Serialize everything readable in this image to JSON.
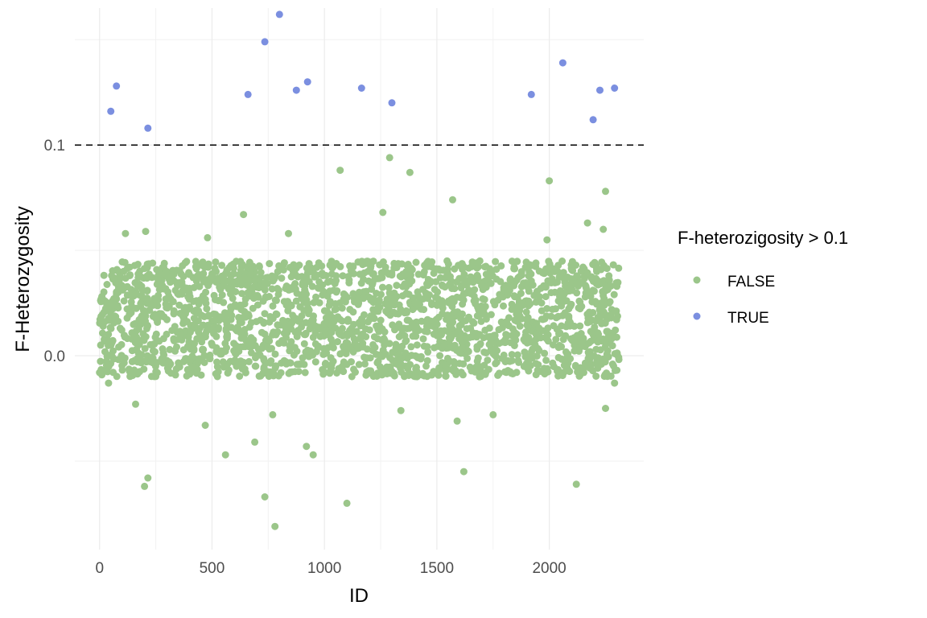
{
  "chart_data": {
    "type": "scatter",
    "xlabel": "ID",
    "ylabel": "F-Heterozygosity",
    "xlim": [
      -110,
      2420
    ],
    "ylim": [
      -0.092,
      0.165
    ],
    "x_ticks": [
      0,
      500,
      1000,
      1500,
      2000
    ],
    "x_tick_labels": [
      "0",
      "500",
      "1000",
      "1500",
      "2000"
    ],
    "y_ticks": [
      0.0,
      0.1
    ],
    "y_tick_labels": [
      "0.0",
      "0.1"
    ],
    "grid": true,
    "threshold": 0.1,
    "legend": {
      "title": "F-heterozigosity > 0.1",
      "position": "right",
      "entries": [
        {
          "label": "FALSE",
          "color": "#9bc68a"
        },
        {
          "label": "TRUE",
          "color": "#7b8fe0"
        }
      ]
    },
    "series": [
      {
        "name": "TRUE",
        "color": "#7b8fe0",
        "points": [
          [
            50,
            0.116
          ],
          [
            75,
            0.128
          ],
          [
            215,
            0.108
          ],
          [
            660,
            0.124
          ],
          [
            735,
            0.149
          ],
          [
            800,
            0.162
          ],
          [
            875,
            0.126
          ],
          [
            925,
            0.13
          ],
          [
            1165,
            0.127
          ],
          [
            1300,
            0.12
          ],
          [
            1920,
            0.124
          ],
          [
            2060,
            0.139
          ],
          [
            2195,
            0.112
          ],
          [
            2225,
            0.126
          ],
          [
            2290,
            0.127
          ]
        ]
      },
      {
        "name": "FALSE",
        "color": "#9bc68a",
        "n_bulk": 2200,
        "bulk_x_range": [
          0,
          2310
        ],
        "bulk_y_range": [
          -0.01,
          0.045
        ],
        "outlier_points": [
          [
            0,
            -0.008
          ],
          [
            40,
            -0.013
          ],
          [
            160,
            -0.023
          ],
          [
            200,
            -0.062
          ],
          [
            215,
            -0.058
          ],
          [
            470,
            -0.033
          ],
          [
            560,
            -0.047
          ],
          [
            690,
            -0.041
          ],
          [
            735,
            -0.067
          ],
          [
            770,
            -0.028
          ],
          [
            780,
            -0.081
          ],
          [
            920,
            -0.043
          ],
          [
            950,
            -0.047
          ],
          [
            1100,
            -0.07
          ],
          [
            1340,
            -0.026
          ],
          [
            1590,
            -0.031
          ],
          [
            1620,
            -0.055
          ],
          [
            1750,
            -0.028
          ],
          [
            2120,
            -0.061
          ],
          [
            2250,
            -0.025
          ],
          [
            2290,
            -0.013
          ],
          [
            1070,
            0.088
          ],
          [
            1290,
            0.094
          ],
          [
            1380,
            0.087
          ],
          [
            2000,
            0.083
          ],
          [
            2250,
            0.078
          ],
          [
            640,
            0.067
          ],
          [
            1260,
            0.068
          ],
          [
            1570,
            0.074
          ],
          [
            115,
            0.058
          ],
          [
            205,
            0.059
          ],
          [
            840,
            0.058
          ],
          [
            2170,
            0.063
          ],
          [
            2240,
            0.06
          ],
          [
            480,
            0.056
          ],
          [
            1990,
            0.055
          ]
        ]
      }
    ]
  }
}
